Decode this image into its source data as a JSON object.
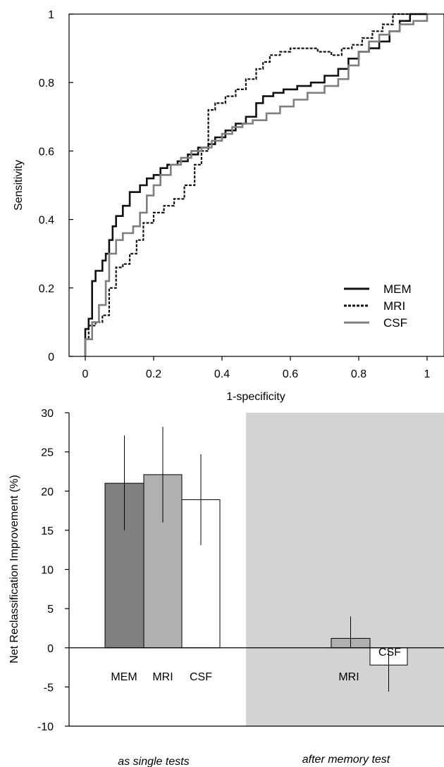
{
  "chart_data": [
    {
      "type": "line",
      "title": "",
      "xlabel": "1-specificity",
      "ylabel": "Sensitivity",
      "xlim": [
        0,
        1
      ],
      "ylim": [
        0,
        1
      ],
      "x_ticks": [
        "0",
        "0.2",
        "0.4",
        "0.6",
        "0.8",
        "1"
      ],
      "y_ticks": [
        "0",
        "0.2",
        "0.4",
        "0.6",
        "0.8",
        "1"
      ],
      "grid": false,
      "legend_position": "bottom-right",
      "series": [
        {
          "name": "MEM",
          "color": "#111111",
          "style": "solid",
          "x": [
            0,
            0,
            0.01,
            0.01,
            0.02,
            0.02,
            0.03,
            0.03,
            0.05,
            0.05,
            0.06,
            0.06,
            0.07,
            0.07,
            0.08,
            0.08,
            0.09,
            0.09,
            0.11,
            0.11,
            0.13,
            0.13,
            0.16,
            0.16,
            0.18,
            0.18,
            0.2,
            0.2,
            0.22,
            0.22,
            0.24,
            0.24,
            0.27,
            0.27,
            0.3,
            0.3,
            0.33,
            0.33,
            0.36,
            0.36,
            0.38,
            0.38,
            0.41,
            0.41,
            0.44,
            0.44,
            0.47,
            0.47,
            0.5,
            0.5,
            0.52,
            0.52,
            0.55,
            0.55,
            0.58,
            0.58,
            0.62,
            0.62,
            0.66,
            0.66,
            0.7,
            0.7,
            0.74,
            0.74,
            0.77,
            0.77,
            0.8,
            0.8,
            0.83,
            0.83,
            0.86,
            0.86,
            0.89,
            0.89,
            0.92,
            0.92,
            0.95,
            0.95,
            0.98,
            0.98,
            1
          ],
          "y": [
            0,
            0.08,
            0.08,
            0.11,
            0.11,
            0.22,
            0.22,
            0.25,
            0.25,
            0.28,
            0.28,
            0.3,
            0.3,
            0.34,
            0.34,
            0.38,
            0.38,
            0.41,
            0.41,
            0.44,
            0.44,
            0.48,
            0.48,
            0.5,
            0.5,
            0.52,
            0.52,
            0.53,
            0.53,
            0.55,
            0.55,
            0.56,
            0.56,
            0.57,
            0.57,
            0.59,
            0.59,
            0.61,
            0.61,
            0.62,
            0.62,
            0.64,
            0.64,
            0.66,
            0.66,
            0.68,
            0.68,
            0.7,
            0.7,
            0.74,
            0.74,
            0.76,
            0.76,
            0.77,
            0.77,
            0.78,
            0.78,
            0.79,
            0.79,
            0.8,
            0.8,
            0.82,
            0.82,
            0.84,
            0.84,
            0.87,
            0.87,
            0.89,
            0.89,
            0.9,
            0.9,
            0.92,
            0.92,
            0.95,
            0.95,
            0.98,
            0.98,
            1,
            1,
            1,
            1
          ]
        },
        {
          "name": "MRI",
          "color": "#111111",
          "style": "dotted",
          "x": [
            0,
            0,
            0.01,
            0.01,
            0.03,
            0.03,
            0.05,
            0.05,
            0.07,
            0.07,
            0.09,
            0.09,
            0.11,
            0.11,
            0.13,
            0.13,
            0.15,
            0.15,
            0.17,
            0.17,
            0.2,
            0.2,
            0.23,
            0.23,
            0.26,
            0.26,
            0.29,
            0.29,
            0.32,
            0.32,
            0.34,
            0.34,
            0.36,
            0.36,
            0.38,
            0.38,
            0.41,
            0.41,
            0.44,
            0.44,
            0.47,
            0.47,
            0.5,
            0.5,
            0.52,
            0.52,
            0.54,
            0.54,
            0.57,
            0.57,
            0.6,
            0.6,
            0.64,
            0.64,
            0.68,
            0.68,
            0.72,
            0.72,
            0.75,
            0.75,
            0.78,
            0.78,
            0.81,
            0.81,
            0.84,
            0.84,
            0.87,
            0.87,
            0.9,
            0.9,
            0.93,
            0.93,
            0.96,
            0.96,
            1
          ],
          "y": [
            0,
            0.05,
            0.05,
            0.09,
            0.09,
            0.1,
            0.1,
            0.12,
            0.12,
            0.2,
            0.2,
            0.26,
            0.26,
            0.27,
            0.27,
            0.3,
            0.3,
            0.34,
            0.34,
            0.39,
            0.39,
            0.42,
            0.42,
            0.44,
            0.44,
            0.46,
            0.46,
            0.5,
            0.5,
            0.56,
            0.56,
            0.6,
            0.6,
            0.72,
            0.72,
            0.74,
            0.74,
            0.76,
            0.76,
            0.78,
            0.78,
            0.81,
            0.81,
            0.84,
            0.84,
            0.86,
            0.86,
            0.88,
            0.88,
            0.89,
            0.89,
            0.9,
            0.9,
            0.9,
            0.9,
            0.89,
            0.89,
            0.88,
            0.88,
            0.9,
            0.9,
            0.91,
            0.91,
            0.93,
            0.93,
            0.95,
            0.95,
            0.97,
            0.97,
            1,
            1,
            1,
            1,
            1,
            1
          ]
        },
        {
          "name": "CSF",
          "color": "#7f7f7f",
          "style": "solid",
          "x": [
            0,
            0,
            0.02,
            0.02,
            0.04,
            0.04,
            0.06,
            0.06,
            0.07,
            0.07,
            0.09,
            0.09,
            0.11,
            0.11,
            0.14,
            0.14,
            0.16,
            0.16,
            0.18,
            0.18,
            0.2,
            0.2,
            0.22,
            0.22,
            0.25,
            0.25,
            0.28,
            0.28,
            0.31,
            0.31,
            0.34,
            0.34,
            0.37,
            0.37,
            0.4,
            0.4,
            0.43,
            0.43,
            0.46,
            0.46,
            0.49,
            0.49,
            0.53,
            0.53,
            0.57,
            0.57,
            0.61,
            0.61,
            0.65,
            0.65,
            0.7,
            0.7,
            0.74,
            0.74,
            0.77,
            0.77,
            0.8,
            0.8,
            0.83,
            0.83,
            0.86,
            0.86,
            0.89,
            0.89,
            0.92,
            0.92,
            0.96,
            0.96,
            1,
            1
          ],
          "y": [
            0,
            0.05,
            0.05,
            0.1,
            0.1,
            0.15,
            0.15,
            0.22,
            0.22,
            0.3,
            0.3,
            0.34,
            0.34,
            0.36,
            0.36,
            0.38,
            0.38,
            0.42,
            0.42,
            0.47,
            0.47,
            0.5,
            0.5,
            0.53,
            0.53,
            0.56,
            0.56,
            0.58,
            0.58,
            0.6,
            0.6,
            0.61,
            0.61,
            0.63,
            0.63,
            0.65,
            0.65,
            0.67,
            0.67,
            0.68,
            0.68,
            0.69,
            0.69,
            0.71,
            0.71,
            0.73,
            0.73,
            0.75,
            0.75,
            0.77,
            0.77,
            0.79,
            0.79,
            0.81,
            0.81,
            0.85,
            0.85,
            0.89,
            0.89,
            0.92,
            0.92,
            0.94,
            0.94,
            0.95,
            0.95,
            0.97,
            0.97,
            0.98,
            0.98,
            1
          ]
        }
      ]
    },
    {
      "type": "bar",
      "title": "",
      "xlabel": "",
      "ylabel": "Net Reclassification Improvement (%)",
      "ylim": [
        -10,
        30
      ],
      "y_ticks": [
        "-10",
        "-5",
        "0",
        "5",
        "10",
        "15",
        "20",
        "25",
        "30"
      ],
      "grid": false,
      "groups": [
        {
          "label": "as single tests",
          "shaded": false,
          "shade_color": "#d3d3d3"
        },
        {
          "label": "after memory test",
          "shaded": true,
          "shade_color": "#d3d3d3"
        }
      ],
      "bars": [
        {
          "group": 0,
          "label": "MEM",
          "value": 21.0,
          "err_low": 15.0,
          "err_high": 27.1,
          "color": "#808080"
        },
        {
          "group": 0,
          "label": "MRI",
          "value": 22.1,
          "err_low": 16.0,
          "err_high": 28.2,
          "color": "#b0b0b0"
        },
        {
          "group": 0,
          "label": "CSF",
          "value": 18.9,
          "err_low": 13.1,
          "err_high": 24.7,
          "color": "#ffffff"
        },
        {
          "group": 1,
          "label": "MRI",
          "value": 1.2,
          "err_low": 0.0,
          "err_high": 4.0,
          "color": "#b0b0b0"
        },
        {
          "group": 1,
          "label": "CSF",
          "value": -2.2,
          "err_low": -5.6,
          "err_high": -0.5,
          "color": "#ffffff"
        }
      ]
    }
  ]
}
